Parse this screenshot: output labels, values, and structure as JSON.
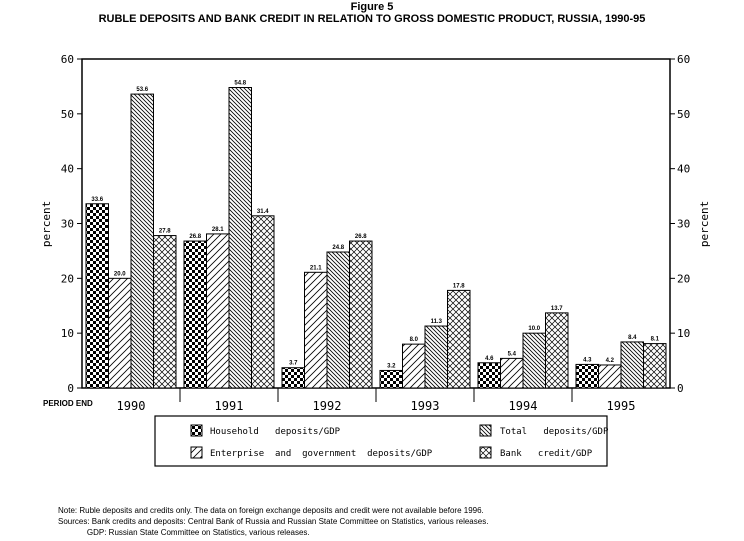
{
  "figure_label": "Figure 5",
  "chart_data": {
    "type": "bar",
    "title": "RUBLE DEPOSITS AND BANK CREDIT IN RELATION TO GROSS DOMESTIC PRODUCT, RUSSIA, 1990-95",
    "xlabel": "PERIOD END",
    "ylabel": "percent",
    "ylabel_right": "percent",
    "ylim": [
      0,
      60
    ],
    "yticks": [
      0,
      10,
      20,
      30,
      40,
      50,
      60
    ],
    "grid": false,
    "legend_position": "bottom",
    "categories": [
      "1990",
      "1991",
      "1992",
      "1993",
      "1994",
      "1995"
    ],
    "series": [
      {
        "name": "Household deposits/GDP",
        "pattern": "checker",
        "values": [
          33.6,
          26.8,
          3.7,
          3.2,
          4.6,
          4.3
        ],
        "labels": [
          "33.6",
          "26.8",
          "3.7",
          "3.2",
          "4.6",
          "4.3"
        ]
      },
      {
        "name": "Enterprise and government deposits/GDP",
        "pattern": "forward-diagonal",
        "values": [
          20.0,
          28.1,
          21.1,
          8.0,
          5.4,
          4.2
        ],
        "labels": [
          "20.0",
          "28.1",
          "21.1",
          "8.0",
          "5.4",
          "4.2"
        ]
      },
      {
        "name": "Total deposits/GDP",
        "pattern": "back-diagonal",
        "values": [
          53.6,
          54.8,
          24.8,
          11.3,
          10.0,
          8.4
        ],
        "labels": [
          "53.6",
          "54.8",
          "24.8",
          "11.3",
          "10.0",
          "8.4"
        ]
      },
      {
        "name": "Bank credit/GDP",
        "pattern": "crosshatch",
        "values": [
          27.8,
          31.4,
          26.8,
          17.8,
          13.7,
          8.1
        ],
        "labels": [
          "27.8",
          "31.4",
          "26.8",
          "17.8",
          "13.7",
          "8.1"
        ]
      }
    ],
    "legend": {
      "household": "Household   deposits/GDP",
      "enterprise": "Enterprise  and  government  deposits/GDP",
      "total": "Total   deposits/GDP",
      "credit": "Bank   credit/GDP"
    }
  },
  "notes": [
    "Note: Ruble deposits and credits only. The data on foreign exchange deposits and credit were not available before 1996.",
    "Sources: Bank credits and deposits: Central Bank of Russia and Russian State Committee on Statistics, various releases.",
    "             GDP: Russian State Committee on Statistics, various releases."
  ]
}
